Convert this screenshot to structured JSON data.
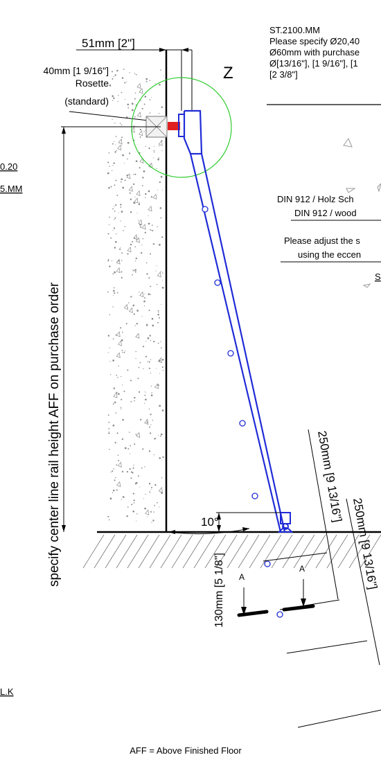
{
  "dims": {
    "top": "51mm [2\"]",
    "rosette_size": "40mm [1 9/16\"]",
    "rosette_name": "Rosette",
    "rosette_std": "(standard)",
    "detail": "Z",
    "angle": "10°",
    "bottom": "130mm [5 1/8\"]",
    "spacing_a": "250mm [9 13/16\"]",
    "spacing_b": "250mm [9 13/16\"]"
  },
  "left_fragments": {
    "l1": "0.20",
    "l2": "5.MM",
    "l3": "L.K"
  },
  "vertical_label": "specify center line rail height AFF on purchase order",
  "section_marks": {
    "a1": "A",
    "a2": "A"
  },
  "notes": {
    "code": "ST.2100.MM",
    "line1": "Please specify Ø20,40",
    "line2": "Ø60mm with purchase",
    "line3": "Ø[13/16\"], [1 9/16\"], [1",
    "line4": "[2 3/8\"]",
    "din_de": "DIN 912 / Holz Sch",
    "din_en": "DIN 912 / wood",
    "adjust1": "Please adjust the s",
    "adjust2": "using the eccen",
    "s": "S"
  },
  "footer": "AFF = Above Finished Floor",
  "colors": {
    "rail": "#1f2bd6",
    "detail_circle": "#2ecc2e",
    "bolt": "#e02020"
  }
}
